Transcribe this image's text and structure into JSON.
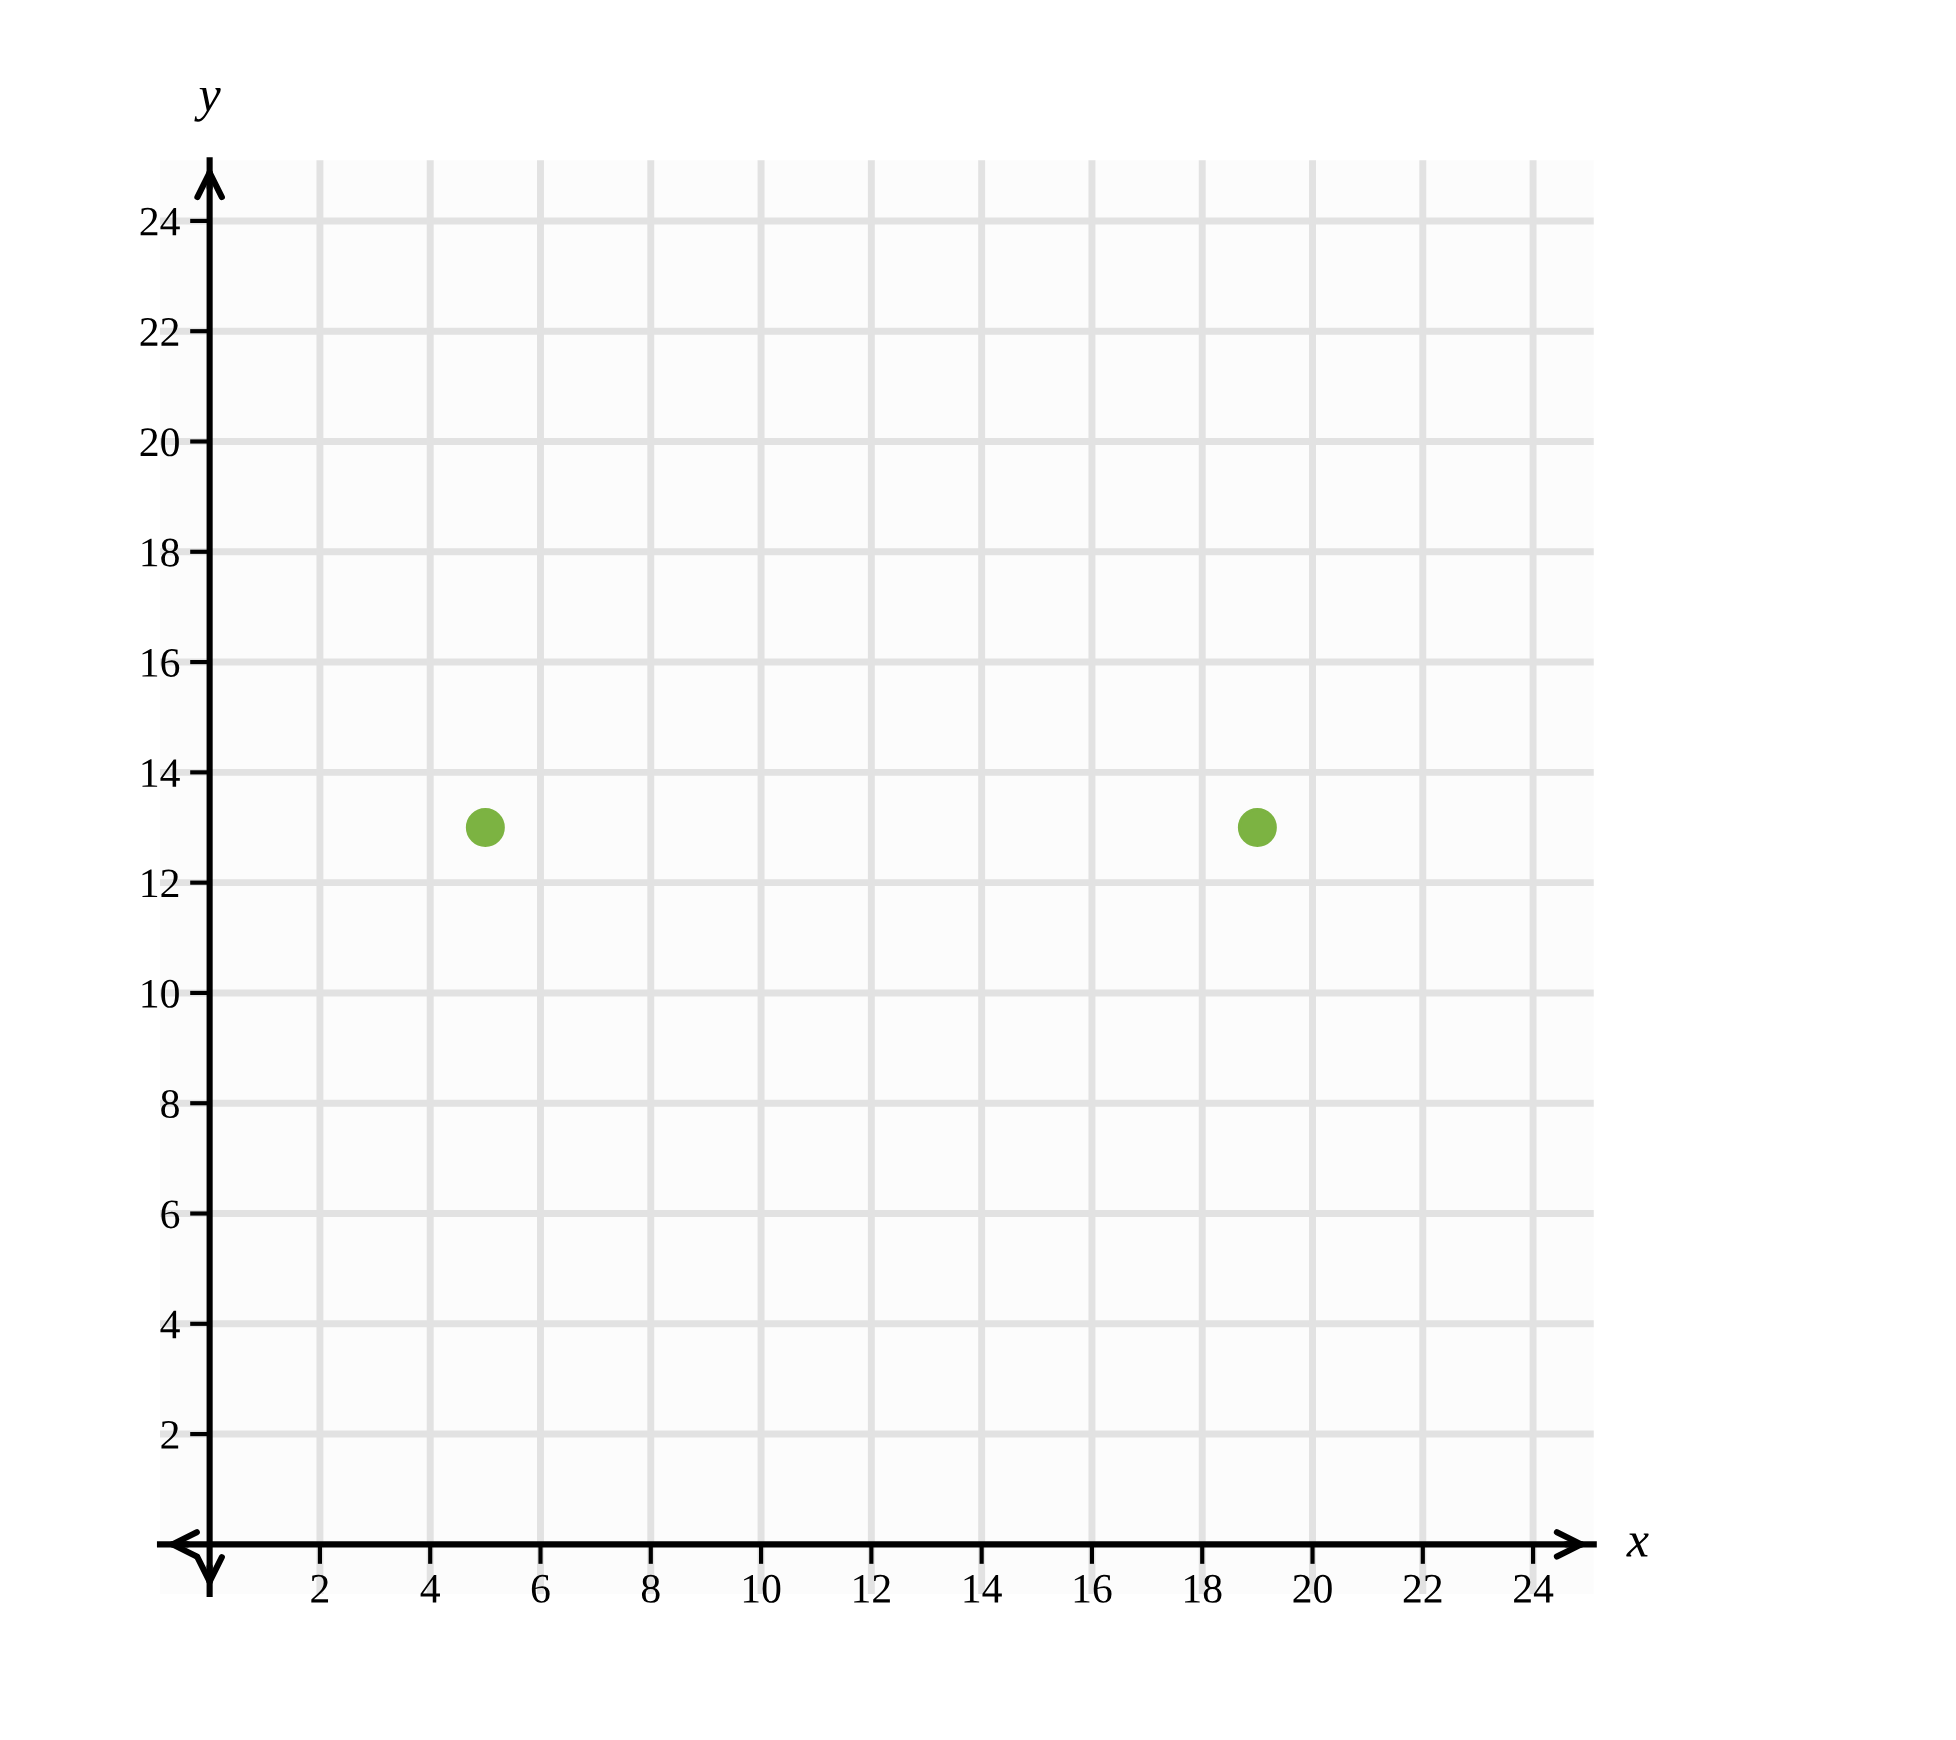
{
  "chart_data": {
    "type": "scatter",
    "xlabel": "x",
    "ylabel": "y",
    "x": [
      5,
      19
    ],
    "values": [
      13,
      13
    ],
    "color": "#7cb342",
    "marker": "circle",
    "xlim": [
      -0.9,
      25.1
    ],
    "ylim": [
      -0.9,
      25.1
    ],
    "xticks": [
      2,
      4,
      6,
      8,
      10,
      12,
      14,
      16,
      18,
      20,
      22,
      24
    ],
    "yticks": [
      2,
      4,
      6,
      8,
      10,
      12,
      14,
      16,
      18,
      20,
      22,
      24
    ],
    "grid": true
  }
}
